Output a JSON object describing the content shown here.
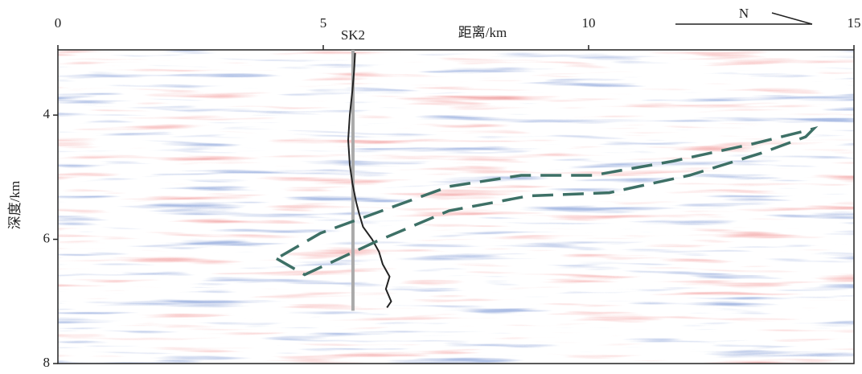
{
  "chart_data": {
    "type": "seismic-section",
    "x_axis_label": "距离/km",
    "y_axis_label": "深度/km",
    "xlim": [
      0,
      15
    ],
    "xticks": [
      0,
      5,
      10,
      15
    ],
    "ylim": [
      2.95,
      8
    ],
    "yticks": [
      4,
      6,
      8
    ],
    "y_inverted": true,
    "well": {
      "name": "SK2",
      "x": 5.56,
      "depth": [
        2.95,
        7.15
      ],
      "log": {
        "color": "#222222",
        "x": [
          5.6,
          5.58,
          5.55,
          5.5,
          5.47,
          5.5,
          5.55,
          5.62,
          5.68,
          5.75,
          5.92,
          6.05,
          6.12,
          6.25,
          6.18,
          6.28,
          6.2
        ],
        "y": [
          3.0,
          3.3,
          3.6,
          4.0,
          4.4,
          4.8,
          5.1,
          5.4,
          5.6,
          5.8,
          6.0,
          6.2,
          6.4,
          6.6,
          6.8,
          7.0,
          7.1
        ]
      }
    },
    "outline": {
      "color": "#3d7066",
      "x": [
        4.12,
        4.65,
        6.01,
        7.37,
        8.88,
        10.39,
        11.9,
        13.26,
        14.09,
        14.24,
        13.11,
        11.6,
        10.09,
        8.73,
        7.37,
        6.01,
        4.95,
        4.12
      ],
      "y": [
        6.31,
        6.57,
        6.03,
        5.54,
        5.3,
        5.25,
        4.97,
        4.61,
        4.35,
        4.22,
        4.46,
        4.74,
        4.97,
        4.97,
        5.15,
        5.57,
        5.9,
        6.31
      ]
    },
    "north_label": "N"
  }
}
